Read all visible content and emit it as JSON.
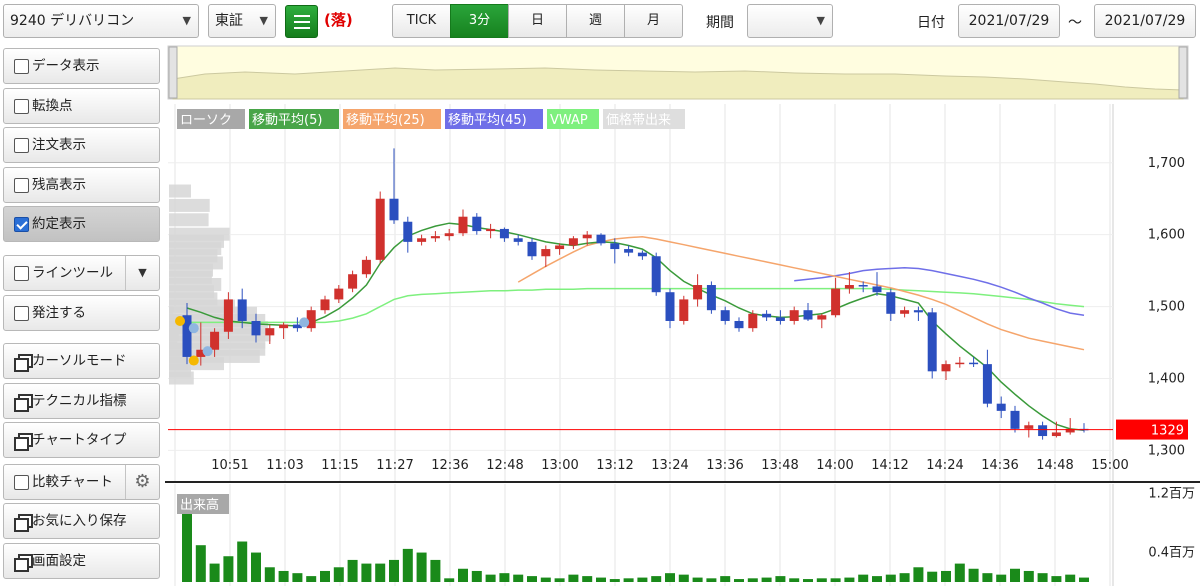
{
  "toolbar": {
    "symbol": "9240 デリバリコン",
    "market": "東証",
    "ochi_mark": "(落)",
    "timeframes": [
      {
        "label": "TICK",
        "active": false
      },
      {
        "label": "3分",
        "active": true
      },
      {
        "label": "日",
        "active": false
      },
      {
        "label": "週",
        "active": false
      },
      {
        "label": "月",
        "active": false
      }
    ],
    "period_label": "期間",
    "period_value": "",
    "date_label": "日付",
    "date_from": "2021/07/29",
    "date_sep": "～",
    "date_to": "2021/07/29"
  },
  "sidebar": {
    "data_display": "データ表示",
    "turning_point": "転換点",
    "order_display": "注文表示",
    "balance_display": "残高表示",
    "execution_display": "約定表示",
    "line_tool": "ラインツール",
    "place_order": "発注する",
    "cursor_mode": "カーソルモード",
    "technical": "テクニカル指標",
    "chart_type": "チャートタイプ",
    "compare_chart": "比較チャート",
    "save_favorite": "お気に入り保存",
    "screen_settings": "画面設定"
  },
  "sidebar_checks": {
    "data_display": false,
    "turning_point": false,
    "order_display": false,
    "balance_display": false,
    "execution_display": true,
    "line_tool": false,
    "place_order": false,
    "compare_chart": false
  },
  "colors": {
    "up": "#d0312d",
    "down": "#2b4fbf",
    "ma5": "#3a9a3a",
    "ma25": "#f5a56c",
    "ma45": "#6f6fe8",
    "vwap": "#7ef07e",
    "volume": "#1a8a1a",
    "current_price": "#ff0000"
  },
  "chart_data": {
    "type": "candlestick",
    "legend": [
      {
        "label": "ローソク",
        "color": "#a8a8a8"
      },
      {
        "label": "移動平均(5)",
        "color": "#48a548"
      },
      {
        "label": "移動平均(25)",
        "color": "#f5a56c"
      },
      {
        "label": "移動平均(45)",
        "color": "#6f6fe8"
      },
      {
        "label": "VWAP",
        "color": "#7ef07e"
      },
      {
        "label": "価格帯出来",
        "color": "#dedede"
      }
    ],
    "x_tick_labels": [
      "10:51",
      "11:03",
      "11:15",
      "11:27",
      "12:36",
      "12:48",
      "13:00",
      "13:12",
      "13:24",
      "13:36",
      "13:48",
      "14:00",
      "14:12",
      "14:24",
      "14:36",
      "14:48",
      "15:00"
    ],
    "y_tick_labels": [
      "1,700",
      "1,600",
      "1,500",
      "1,400",
      "1,300"
    ],
    "y_ticks": [
      1700,
      1600,
      1500,
      1400,
      1300
    ],
    "ylim": [
      1270,
      1740
    ],
    "current_price": 1329,
    "current_price_label": "1329",
    "candles": [
      [
        1488,
        1505,
        1420,
        1430
      ],
      [
        1430,
        1478,
        1418,
        1440
      ],
      [
        1440,
        1470,
        1430,
        1465
      ],
      [
        1465,
        1520,
        1455,
        1510
      ],
      [
        1510,
        1525,
        1470,
        1480
      ],
      [
        1480,
        1490,
        1450,
        1460
      ],
      [
        1460,
        1475,
        1448,
        1470
      ],
      [
        1470,
        1478,
        1455,
        1475
      ],
      [
        1475,
        1485,
        1465,
        1470
      ],
      [
        1470,
        1500,
        1465,
        1495
      ],
      [
        1495,
        1515,
        1490,
        1510
      ],
      [
        1510,
        1530,
        1505,
        1525
      ],
      [
        1525,
        1550,
        1520,
        1545
      ],
      [
        1545,
        1570,
        1540,
        1565
      ],
      [
        1565,
        1660,
        1560,
        1650
      ],
      [
        1650,
        1720,
        1615,
        1620
      ],
      [
        1618,
        1625,
        1575,
        1590
      ],
      [
        1590,
        1600,
        1585,
        1595
      ],
      [
        1595,
        1605,
        1590,
        1598
      ],
      [
        1598,
        1608,
        1592,
        1602
      ],
      [
        1602,
        1635,
        1598,
        1625
      ],
      [
        1625,
        1630,
        1600,
        1605
      ],
      [
        1605,
        1615,
        1595,
        1608
      ],
      [
        1608,
        1610,
        1590,
        1595
      ],
      [
        1595,
        1600,
        1585,
        1590
      ],
      [
        1590,
        1595,
        1565,
        1570
      ],
      [
        1570,
        1585,
        1555,
        1580
      ],
      [
        1580,
        1588,
        1572,
        1585
      ],
      [
        1585,
        1598,
        1580,
        1595
      ],
      [
        1595,
        1605,
        1585,
        1600
      ],
      [
        1600,
        1602,
        1585,
        1588
      ],
      [
        1588,
        1595,
        1560,
        1580
      ],
      [
        1580,
        1585,
        1570,
        1575
      ],
      [
        1575,
        1578,
        1565,
        1570
      ],
      [
        1570,
        1575,
        1515,
        1520
      ],
      [
        1520,
        1525,
        1470,
        1480
      ],
      [
        1480,
        1515,
        1475,
        1510
      ],
      [
        1510,
        1545,
        1500,
        1530
      ],
      [
        1530,
        1535,
        1490,
        1495
      ],
      [
        1495,
        1500,
        1475,
        1480
      ],
      [
        1480,
        1485,
        1465,
        1470
      ],
      [
        1470,
        1495,
        1465,
        1490
      ],
      [
        1490,
        1495,
        1480,
        1485
      ],
      [
        1485,
        1495,
        1475,
        1480
      ],
      [
        1480,
        1500,
        1475,
        1495
      ],
      [
        1495,
        1505,
        1480,
        1482
      ],
      [
        1482,
        1490,
        1470,
        1488
      ],
      [
        1488,
        1540,
        1485,
        1525
      ],
      [
        1525,
        1548,
        1518,
        1530
      ],
      [
        1530,
        1535,
        1520,
        1528
      ],
      [
        1528,
        1548,
        1515,
        1520
      ],
      [
        1520,
        1525,
        1480,
        1490
      ],
      [
        1490,
        1500,
        1485,
        1495
      ],
      [
        1495,
        1500,
        1480,
        1492
      ],
      [
        1492,
        1498,
        1400,
        1410
      ],
      [
        1410,
        1425,
        1398,
        1420
      ],
      [
        1420,
        1430,
        1415,
        1422
      ],
      [
        1422,
        1430,
        1416,
        1420
      ],
      [
        1420,
        1440,
        1360,
        1365
      ],
      [
        1365,
        1375,
        1345,
        1355
      ],
      [
        1355,
        1362,
        1325,
        1330
      ],
      [
        1330,
        1340,
        1318,
        1335
      ],
      [
        1335,
        1340,
        1315,
        1320
      ],
      [
        1320,
        1340,
        1318,
        1325
      ],
      [
        1325,
        1345,
        1322,
        1330
      ],
      [
        1330,
        1338,
        1325,
        1329
      ]
    ],
    "ma5": [
      1498,
      1492,
      1485,
      1480,
      1478,
      1476,
      1475,
      1474,
      1473,
      1478,
      1486,
      1497,
      1512,
      1530,
      1560,
      1582,
      1598,
      1606,
      1612,
      1616,
      1614,
      1610,
      1607,
      1604,
      1600,
      1595,
      1590,
      1587,
      1585,
      1588,
      1590,
      1589,
      1585,
      1580,
      1568,
      1550,
      1535,
      1525,
      1516,
      1508,
      1498,
      1490,
      1487,
      1485,
      1486,
      1488,
      1490,
      1497,
      1505,
      1512,
      1518,
      1515,
      1510,
      1505,
      1480,
      1462,
      1445,
      1430,
      1415,
      1395,
      1378,
      1362,
      1348,
      1336,
      1330,
      1328
    ],
    "ma25": [
      null,
      null,
      null,
      null,
      null,
      null,
      null,
      null,
      null,
      null,
      null,
      null,
      null,
      null,
      null,
      null,
      null,
      null,
      null,
      null,
      null,
      null,
      null,
      null,
      1534,
      1545,
      1556,
      1566,
      1576,
      1585,
      1590,
      1594,
      1596,
      1597,
      1594,
      1590,
      1586,
      1582,
      1578,
      1574,
      1570,
      1566,
      1562,
      1558,
      1554,
      1550,
      1546,
      1542,
      1538,
      1534,
      1530,
      1526,
      1521,
      1516,
      1510,
      1503,
      1494,
      1485,
      1476,
      1468,
      1462,
      1456,
      1452,
      1448,
      1444,
      1440
    ],
    "ma45": [
      null,
      null,
      null,
      null,
      null,
      null,
      null,
      null,
      null,
      null,
      null,
      null,
      null,
      null,
      null,
      null,
      null,
      null,
      null,
      null,
      null,
      null,
      null,
      null,
      null,
      null,
      null,
      null,
      null,
      null,
      null,
      null,
      null,
      null,
      null,
      null,
      null,
      null,
      null,
      null,
      null,
      null,
      null,
      null,
      1536,
      1538,
      1540,
      1543,
      1546,
      1550,
      1552,
      1553,
      1554,
      1553,
      1550,
      1546,
      1542,
      1538,
      1533,
      1527,
      1520,
      1512,
      1505,
      1497,
      1491,
      1488
    ],
    "vwap": [
      1478,
      1478,
      1478,
      1478,
      1478,
      1478,
      1478,
      1478,
      1478,
      1478,
      1478,
      1480,
      1484,
      1490,
      1500,
      1510,
      1515,
      1517,
      1518,
      1519,
      1520,
      1521,
      1522,
      1522,
      1523,
      1523,
      1524,
      1524,
      1524,
      1525,
      1525,
      1525,
      1525,
      1525,
      1525,
      1525,
      1525,
      1525,
      1525,
      1525,
      1525,
      1525,
      1525,
      1525,
      1525,
      1525,
      1525,
      1525,
      1525,
      1525,
      1525,
      1524,
      1523,
      1522,
      1521,
      1520,
      1519,
      1518,
      1516,
      1514,
      1512,
      1510,
      1507,
      1504,
      1502,
      1500
    ],
    "price_band": [
      [
        1490,
        8
      ],
      [
        1480,
        32
      ],
      [
        1470,
        28
      ],
      [
        1460,
        18
      ],
      [
        1450,
        15
      ],
      [
        1440,
        22
      ],
      [
        1430,
        20
      ],
      [
        1420,
        35
      ],
      [
        1410,
        40
      ],
      [
        1400,
        45
      ],
      [
        1420,
        100
      ],
      [
        1430,
        165
      ],
      [
        1440,
        175
      ],
      [
        1450,
        175
      ],
      [
        1460,
        185
      ],
      [
        1470,
        180
      ],
      [
        1480,
        175
      ],
      [
        1490,
        160
      ],
      [
        1500,
        120
      ],
      [
        1510,
        88
      ],
      [
        1520,
        82
      ],
      [
        1530,
        95
      ],
      [
        1540,
        78
      ],
      [
        1550,
        80
      ],
      [
        1560,
        98
      ],
      [
        1570,
        88
      ],
      [
        1580,
        95
      ],
      [
        1590,
        100
      ],
      [
        1600,
        110
      ],
      [
        1620,
        72
      ],
      [
        1640,
        74
      ],
      [
        1660,
        40
      ]
    ],
    "volume_label": "出来高",
    "volume_tick_labels": [
      "1.2百万",
      "0.4百万"
    ],
    "volume_ticks": [
      1.2,
      0.4
    ],
    "volume_max": 1.25,
    "volumes": [
      1.15,
      0.5,
      0.25,
      0.35,
      0.55,
      0.4,
      0.2,
      0.15,
      0.12,
      0.08,
      0.15,
      0.2,
      0.3,
      0.25,
      0.25,
      0.3,
      0.45,
      0.4,
      0.3,
      0.05,
      0.18,
      0.15,
      0.1,
      0.12,
      0.1,
      0.08,
      0.06,
      0.05,
      0.1,
      0.08,
      0.06,
      0.04,
      0.05,
      0.06,
      0.08,
      0.12,
      0.1,
      0.06,
      0.05,
      0.08,
      0.04,
      0.05,
      0.06,
      0.08,
      0.05,
      0.04,
      0.05,
      0.05,
      0.06,
      0.1,
      0.08,
      0.1,
      0.12,
      0.2,
      0.14,
      0.15,
      0.25,
      0.18,
      0.12,
      0.1,
      0.18,
      0.15,
      0.12,
      0.08,
      0.1,
      0.06
    ]
  }
}
